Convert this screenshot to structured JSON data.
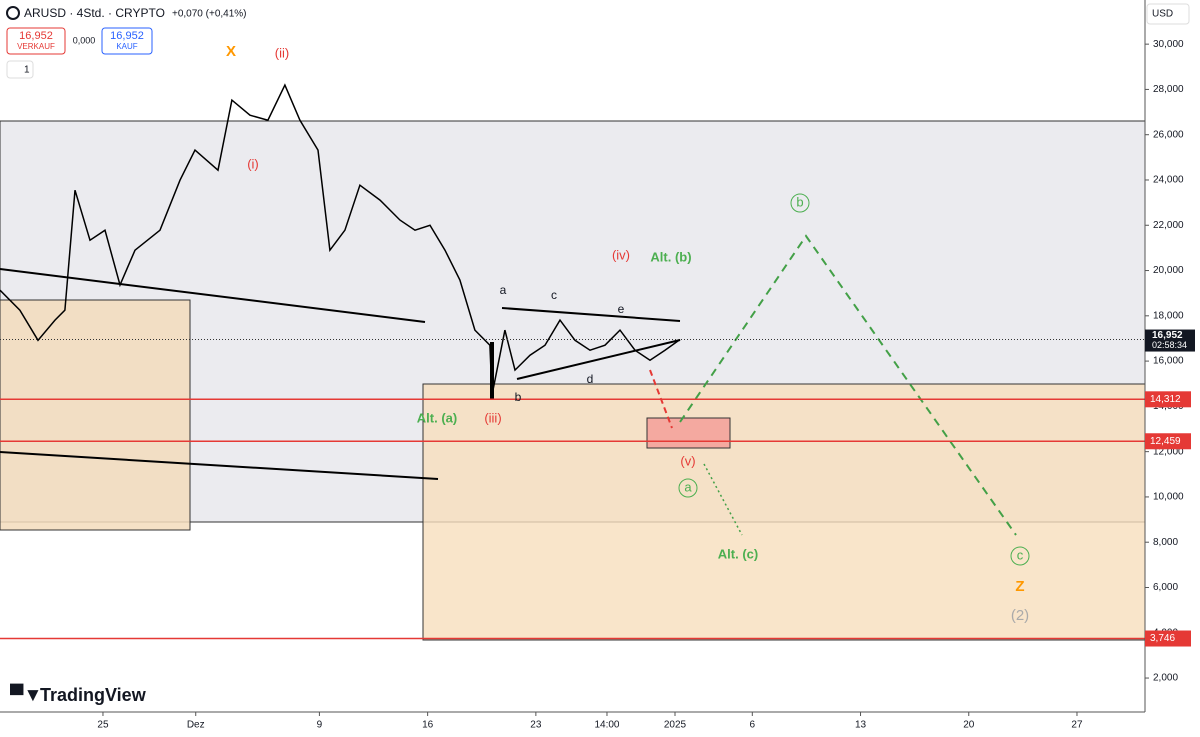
{
  "chart_data": {
    "type": "line",
    "header": {
      "symbol": "ARUSD · 4Std. · CRYPTO",
      "change": "+0,070 (+0,41%)",
      "sell_price": "16,952",
      "sell_label": "VERKAUF",
      "spread": "0,000",
      "buy_price": "16,952",
      "buy_label": "KAUF",
      "interval_count": "1",
      "currency": "USD",
      "brand": "TradingView"
    },
    "x": [
      -6.66,
      -5.37,
      -4.2,
      -3.1,
      -2.46,
      -1.81,
      -0.84,
      0.13,
      1.1,
      2.07,
      3.69,
      4.98,
      5.95,
      7.44,
      8.34,
      9.51,
      10.67,
      11.77,
      12.74,
      13.91,
      14.68,
      15.65,
      16.62,
      17.92,
      19.21,
      20.18,
      21.15,
      22.12,
      23.09,
      24.06,
      25.03,
      25.16,
      26.0,
      26.65,
      27.62,
      28.59,
      29.56,
      30.53,
      31.5,
      32.47,
      33.44,
      34.41,
      35.38,
      36.35,
      37.32
    ],
    "values": [
      19130,
      18250,
      16920,
      17810,
      18250,
      23550,
      21340,
      21780,
      19360,
      20900,
      21780,
      23990,
      25320,
      24430,
      27530,
      26860,
      26640,
      28190,
      26640,
      25320,
      20900,
      21780,
      23770,
      23110,
      22230,
      21780,
      22000,
      20900,
      19580,
      17370,
      16700,
      14500,
      17370,
      15600,
      16260,
      16700,
      17810,
      16920,
      16480,
      16700,
      17370,
      16480,
      16040,
      16480,
      16952
    ],
    "color": "#000000",
    "xlim": [
      -6.66,
      67.4
    ],
    "xticks": [
      {
        "value": 0,
        "label": "25"
      },
      {
        "value": 6,
        "label": "Dez"
      },
      {
        "value": 14,
        "label": "9"
      },
      {
        "value": 21,
        "label": "16"
      },
      {
        "value": 28,
        "label": "23"
      },
      {
        "value": 32.6,
        "label": "14:00"
      },
      {
        "value": 37,
        "label": "2025"
      },
      {
        "value": 42,
        "label": "6"
      },
      {
        "value": 49,
        "label": "13"
      },
      {
        "value": 56,
        "label": "20"
      },
      {
        "value": 63,
        "label": "27"
      }
    ],
    "ylim": [
      500,
      31950
    ],
    "yticks": [
      {
        "value": 2000,
        "label": "2,000"
      },
      {
        "value": 4000,
        "label": "4,000"
      },
      {
        "value": 6000,
        "label": "6,000"
      },
      {
        "value": 8000,
        "label": "8,000"
      },
      {
        "value": 10000,
        "label": "10,000"
      },
      {
        "value": 12000,
        "label": "12,000"
      },
      {
        "value": 14000,
        "label": "14,000"
      },
      {
        "value": 16000,
        "label": "16,000"
      },
      {
        "value": 18000,
        "label": "18,000"
      },
      {
        "value": 20000,
        "label": "20,000"
      },
      {
        "value": 22000,
        "label": "22,000"
      },
      {
        "value": 24000,
        "label": "24,000"
      },
      {
        "value": 26000,
        "label": "26,000"
      },
      {
        "value": 28000,
        "label": "28,000"
      },
      {
        "value": 30000,
        "label": "30,000"
      }
    ],
    "levels": [
      {
        "value": 14312,
        "label": "14,312"
      },
      {
        "value": 12459,
        "label": "12,459"
      },
      {
        "value": 3746,
        "label": "3,746"
      }
    ],
    "level_color": "#e53935",
    "last": {
      "value": 16952,
      "label": "16,952"
    },
    "countdown": "02:58:34",
    "annotations": [
      "X",
      "(ii)",
      "(i)",
      "(iv)",
      "Alt. (b)",
      "a",
      "c",
      "e",
      "d",
      "b",
      "(iii)",
      "Alt. (a)",
      "(v)",
      "a",
      "b",
      "Alt. (c)",
      "c",
      "Z",
      "(2)"
    ]
  }
}
